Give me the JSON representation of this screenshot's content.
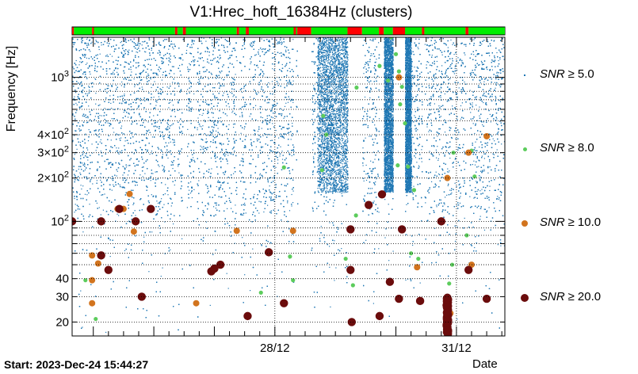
{
  "chart_data": {
    "type": "scatter",
    "title": "V1:Hrec_hoft_16384Hz (clusters)",
    "ylabel": "Frequency [Hz]",
    "xlabel": "Date",
    "start_label": "Start: 2023-Dec-24 15:44:27",
    "yscale": "log",
    "ylim": [
      16,
      1900
    ],
    "xlim": [
      0,
      7.15
    ],
    "y_ticks": [
      {
        "value": 20,
        "label": "20"
      },
      {
        "value": 30,
        "label": "30"
      },
      {
        "value": 40,
        "label": "40"
      },
      {
        "value": 100,
        "label": "10²"
      },
      {
        "value": 200,
        "label": "2×10²"
      },
      {
        "value": 300,
        "label": "3×10²"
      },
      {
        "value": 400,
        "label": "4×10²"
      },
      {
        "value": 1000,
        "label": "10³"
      }
    ],
    "x_ticks": [
      {
        "value": 3.35,
        "label": "28/12"
      },
      {
        "value": 6.35,
        "label": "31/12"
      }
    ],
    "grid": true,
    "colors": {
      "snr5": "#1f77b4",
      "snr8": "#5ccc5c",
      "snr10": "#d2741e",
      "snr20": "#6b0c0c",
      "segment_on": "#00ee00",
      "segment_off": "#ff0000"
    },
    "legend": [
      {
        "id": "snr5",
        "label": "SNR",
        "sym": "≥",
        "value": "5.0"
      },
      {
        "id": "snr8",
        "label": "SNR",
        "sym": "≥",
        "value": "8.0"
      },
      {
        "id": "snr10",
        "label": "SNR",
        "sym": "≥",
        "value": "10.0"
      },
      {
        "id": "snr20",
        "label": "SNR",
        "sym": "≥",
        "value": "20.0"
      }
    ],
    "gaps": [
      [
        0.33,
        0.36
      ],
      [
        1.7,
        1.74
      ],
      [
        1.83,
        1.88
      ],
      [
        2.02,
        2.06
      ],
      [
        2.72,
        2.76
      ],
      [
        2.87,
        2.92
      ],
      [
        3.66,
        3.7
      ],
      [
        3.72,
        3.95
      ],
      [
        4.55,
        4.79
      ],
      [
        5.07,
        5.15
      ],
      [
        5.3,
        5.5
      ],
      [
        5.78,
        5.82
      ],
      [
        6.5,
        6.55
      ]
    ],
    "dense_bands": [
      [
        4.05,
        4.55
      ],
      [
        5.15,
        5.3
      ],
      [
        5.5,
        5.6
      ]
    ],
    "segments": [
      {
        "x0": 0.0,
        "x1": 0.03,
        "on": false
      },
      {
        "x0": 0.03,
        "x1": 0.33,
        "on": true
      },
      {
        "x0": 0.33,
        "x1": 0.36,
        "on": false
      },
      {
        "x0": 0.36,
        "x1": 1.7,
        "on": true
      },
      {
        "x0": 1.7,
        "x1": 1.74,
        "on": false
      },
      {
        "x0": 1.74,
        "x1": 1.83,
        "on": true
      },
      {
        "x0": 1.83,
        "x1": 1.88,
        "on": false
      },
      {
        "x0": 1.88,
        "x1": 2.72,
        "on": true
      },
      {
        "x0": 2.72,
        "x1": 2.76,
        "on": false
      },
      {
        "x0": 2.76,
        "x1": 2.87,
        "on": true
      },
      {
        "x0": 2.87,
        "x1": 2.92,
        "on": false
      },
      {
        "x0": 2.92,
        "x1": 3.66,
        "on": true
      },
      {
        "x0": 3.66,
        "x1": 3.7,
        "on": false
      },
      {
        "x0": 3.7,
        "x1": 3.72,
        "on": true
      },
      {
        "x0": 3.72,
        "x1": 3.95,
        "on": false
      },
      {
        "x0": 3.95,
        "x1": 4.55,
        "on": true
      },
      {
        "x0": 4.55,
        "x1": 4.79,
        "on": false
      },
      {
        "x0": 4.79,
        "x1": 5.07,
        "on": true
      },
      {
        "x0": 5.07,
        "x1": 5.15,
        "on": false
      },
      {
        "x0": 5.15,
        "x1": 5.3,
        "on": true
      },
      {
        "x0": 5.3,
        "x1": 5.5,
        "on": false
      },
      {
        "x0": 5.5,
        "x1": 5.78,
        "on": true
      },
      {
        "x0": 5.78,
        "x1": 5.82,
        "on": false
      },
      {
        "x0": 5.82,
        "x1": 6.5,
        "on": true
      },
      {
        "x0": 6.5,
        "x1": 6.55,
        "on": false
      },
      {
        "x0": 6.55,
        "x1": 7.15,
        "on": true
      }
    ],
    "series": [
      {
        "id": "snr8",
        "points": [
          [
            0.22,
            39
          ],
          [
            0.39,
            21
          ],
          [
            3.12,
            32
          ],
          [
            3.5,
            237
          ],
          [
            3.6,
            57
          ],
          [
            3.65,
            39
          ],
          [
            4.13,
            227
          ],
          [
            4.52,
            55
          ],
          [
            4.64,
            36
          ],
          [
            4.69,
            110
          ],
          [
            5.27,
            1900
          ],
          [
            5.35,
            1450
          ],
          [
            5.4,
            1100
          ],
          [
            5.45,
            860
          ],
          [
            5.42,
            650
          ],
          [
            5.5,
            480
          ],
          [
            5.38,
            245
          ],
          [
            5.55,
            240
          ],
          [
            5.6,
            60
          ],
          [
            5.72,
            55
          ],
          [
            5.65,
            165
          ],
          [
            6.23,
            37
          ],
          [
            6.28,
            50
          ],
          [
            6.52,
            80
          ],
          [
            6.65,
            205
          ],
          [
            6.6,
            310
          ],
          [
            5.08,
            1200
          ],
          [
            4.15,
            540
          ],
          [
            4.2,
            400
          ],
          [
            4.7,
            850
          ],
          [
            5.22,
            950
          ],
          [
            6.3,
            300
          ]
        ]
      },
      {
        "id": "snr10",
        "points": [
          [
            0.33,
            58
          ],
          [
            0.33,
            27
          ],
          [
            0.33,
            39
          ],
          [
            0.43,
            51
          ],
          [
            0.75,
            122
          ],
          [
            0.85,
            122
          ],
          [
            0.95,
            155
          ],
          [
            1.02,
            85
          ],
          [
            2.05,
            27
          ],
          [
            2.72,
            86
          ],
          [
            3.65,
            86
          ],
          [
            5.4,
            1000
          ],
          [
            5.7,
            48
          ],
          [
            6.2,
            200
          ],
          [
            6.55,
            300
          ],
          [
            6.6,
            50
          ],
          [
            6.85,
            390
          ],
          [
            6.25,
            23
          ]
        ]
      },
      {
        "id": "snr20",
        "points": [
          [
            0.0,
            100
          ],
          [
            0.48,
            58
          ],
          [
            0.48,
            100
          ],
          [
            0.78,
            122
          ],
          [
            0.6,
            46
          ],
          [
            1.05,
            100
          ],
          [
            1.3,
            122
          ],
          [
            1.15,
            30
          ],
          [
            2.3,
            45
          ],
          [
            2.35,
            47
          ],
          [
            2.45,
            50
          ],
          [
            2.9,
            22
          ],
          [
            3.25,
            61
          ],
          [
            3.5,
            27
          ],
          [
            4.6,
            88
          ],
          [
            4.6,
            46
          ],
          [
            4.62,
            20
          ],
          [
            4.9,
            130
          ],
          [
            5.12,
            154
          ],
          [
            5.08,
            22
          ],
          [
            5.25,
            38
          ],
          [
            5.4,
            29
          ],
          [
            5.45,
            88
          ],
          [
            5.75,
            28
          ],
          [
            6.1,
            100
          ],
          [
            6.55,
            46
          ],
          [
            6.85,
            29
          ]
        ]
      }
    ],
    "column_cluster": {
      "x": 6.2,
      "y_min": 16.5,
      "y_max": 29.5
    }
  }
}
